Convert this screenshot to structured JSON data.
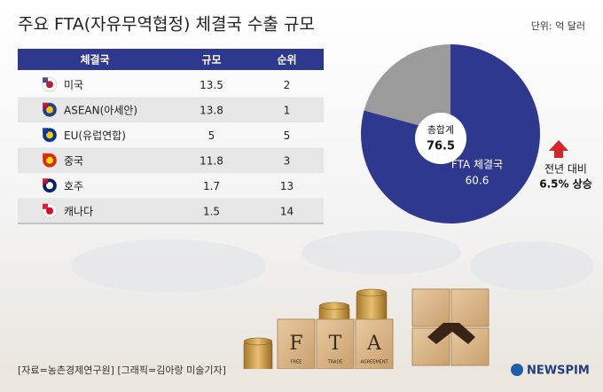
{
  "title": "주요 FTA(자유무역협정) 체결국 수출 규모",
  "unit": "단위: 억 달러",
  "table": {
    "header": [
      "체결국",
      "규모",
      "순위"
    ],
    "rows": [
      [
        "미국",
        13.5,
        2
      ],
      [
        "ASEAN(아세안)",
        13.8,
        1
      ],
      [
        "EU(유럽연합)",
        5,
        5
      ],
      [
        "중국",
        11.8,
        3
      ],
      [
        "호주",
        1.7,
        13
      ],
      [
        "캐나다",
        1.5,
        14
      ]
    ]
  },
  "chart_data": {
    "type": "pie",
    "categories": [
      "FTA 체결국",
      null
    ],
    "values": [
      60.6,
      15.9
    ],
    "colors": [
      "#2e388f",
      "#9b9b9b"
    ],
    "total_label": "총합계",
    "total": 76.5
  },
  "annotation": {
    "line1": "전년 대비",
    "line2": "6.5% 상승"
  },
  "image_text": [
    "F",
    "T",
    "A",
    "FREE",
    "TRADE",
    "AGREEMENT"
  ],
  "source": "[자료=농촌경제연구원] [그래픽=김아랑 미술기자]",
  "logo": "NEWSPIM"
}
